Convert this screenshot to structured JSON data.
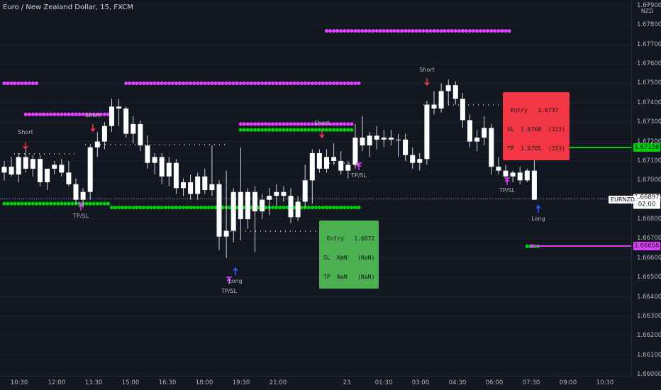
{
  "header": {
    "title": "Euro / New Zealand Dollar, 15, FXCM"
  },
  "price_axis": {
    "currency_line1": "—",
    "currency_line2": "NZD",
    "labels": [
      "1.67900",
      "1.67800",
      "1.67700",
      "1.67600",
      "1.67500",
      "1.67400",
      "1.67300",
      "1.67200",
      "1.67100",
      "1.67000",
      "1.66900",
      "1.66800",
      "1.66700",
      "1.66600",
      "1.66500",
      "1.66400",
      "1.66300",
      "1.66200",
      "1.66100",
      "1.66000"
    ],
    "tag_upper": "1.67156",
    "tag_lower": "1.66656",
    "current_price": "1.66897",
    "countdown": "02:00",
    "symbol": "EURNZD"
  },
  "time_axis": {
    "labels": [
      "10:30",
      "12:00",
      "13:30",
      "15:00",
      "16:30",
      "18:00",
      "19:30",
      "21:00",
      "23",
      "01:30",
      "03:00",
      "04:30",
      "06:00",
      "07:30",
      "09:00",
      "10:30"
    ]
  },
  "short_box": {
    "entry_label": "Entry",
    "entry_value": "1.6737",
    "sl_label": "SL",
    "sl_value": "1.6768",
    "sl_pips": "(313)",
    "tp_label": "TP",
    "tp_value": "1.6705",
    "tp_pips": "(313)"
  },
  "long_box": {
    "entry_label": "Entry",
    "entry_value": "1.6672",
    "sl_label": "SL",
    "sl_value": "NaN",
    "sl_pips": "(NaN)",
    "tp_label": "TP",
    "tp_value": "NaN",
    "tp_pips": "(NaN)"
  },
  "signal_labels": {
    "short": "Short",
    "long": "Long",
    "tpsl": "TP/SL"
  },
  "colors": {
    "background": "#131722",
    "up_candle": "#ffffff",
    "down_candle": "#ffffff",
    "green_dots": "#00d00a",
    "magenta_dots": "#e040fb",
    "short_arrow": "#f23645",
    "long_arrow": "#2962ff",
    "tpsl_marker": "#e040fb"
  },
  "chart_data": {
    "type": "candlestick",
    "symbol": "EURNZD",
    "timeframe": "15",
    "ylim": [
      1.66,
      1.6795
    ],
    "candles": [
      {
        "o": 1.6704,
        "h": 1.671,
        "l": 1.67,
        "c": 1.6707
      },
      {
        "o": 1.6707,
        "h": 1.6712,
        "l": 1.6702,
        "c": 1.6703
      },
      {
        "o": 1.6703,
        "h": 1.6714,
        "l": 1.6699,
        "c": 1.6712
      },
      {
        "o": 1.6712,
        "h": 1.6716,
        "l": 1.6704,
        "c": 1.6706
      },
      {
        "o": 1.6706,
        "h": 1.6713,
        "l": 1.6702,
        "c": 1.6711
      },
      {
        "o": 1.6711,
        "h": 1.6713,
        "l": 1.6697,
        "c": 1.6699
      },
      {
        "o": 1.6699,
        "h": 1.6706,
        "l": 1.6695,
        "c": 1.6706
      },
      {
        "o": 1.6706,
        "h": 1.671,
        "l": 1.6703,
        "c": 1.6708
      },
      {
        "o": 1.6708,
        "h": 1.6711,
        "l": 1.6702,
        "c": 1.6704
      },
      {
        "o": 1.6704,
        "h": 1.671,
        "l": 1.6697,
        "c": 1.6698
      },
      {
        "o": 1.6698,
        "h": 1.6701,
        "l": 1.6688,
        "c": 1.669
      },
      {
        "o": 1.669,
        "h": 1.6696,
        "l": 1.6686,
        "c": 1.6694
      },
      {
        "o": 1.6694,
        "h": 1.6718,
        "l": 1.669,
        "c": 1.6717
      },
      {
        "o": 1.6717,
        "h": 1.6725,
        "l": 1.6712,
        "c": 1.672
      },
      {
        "o": 1.672,
        "h": 1.673,
        "l": 1.6716,
        "c": 1.6728
      },
      {
        "o": 1.6728,
        "h": 1.6742,
        "l": 1.6725,
        "c": 1.6738
      },
      {
        "o": 1.6738,
        "h": 1.6742,
        "l": 1.6728,
        "c": 1.6737
      },
      {
        "o": 1.6737,
        "h": 1.6738,
        "l": 1.6722,
        "c": 1.6724
      },
      {
        "o": 1.6724,
        "h": 1.6733,
        "l": 1.6719,
        "c": 1.6729
      },
      {
        "o": 1.6729,
        "h": 1.6731,
        "l": 1.6715,
        "c": 1.6718
      },
      {
        "o": 1.6718,
        "h": 1.6723,
        "l": 1.6706,
        "c": 1.6709
      },
      {
        "o": 1.6709,
        "h": 1.6714,
        "l": 1.6703,
        "c": 1.6712
      },
      {
        "o": 1.6712,
        "h": 1.6714,
        "l": 1.6698,
        "c": 1.6702
      },
      {
        "o": 1.6702,
        "h": 1.6712,
        "l": 1.6697,
        "c": 1.6709
      },
      {
        "o": 1.6709,
        "h": 1.6711,
        "l": 1.6693,
        "c": 1.6696
      },
      {
        "o": 1.6696,
        "h": 1.6701,
        "l": 1.6692,
        "c": 1.6699
      },
      {
        "o": 1.6699,
        "h": 1.6703,
        "l": 1.669,
        "c": 1.6693
      },
      {
        "o": 1.6693,
        "h": 1.6704,
        "l": 1.669,
        "c": 1.6702
      },
      {
        "o": 1.6702,
        "h": 1.6706,
        "l": 1.6693,
        "c": 1.6695
      },
      {
        "o": 1.6695,
        "h": 1.6718,
        "l": 1.6692,
        "c": 1.6698
      },
      {
        "o": 1.6698,
        "h": 1.67,
        "l": 1.6664,
        "c": 1.6671
      },
      {
        "o": 1.6671,
        "h": 1.6705,
        "l": 1.666,
        "c": 1.6674
      },
      {
        "o": 1.6674,
        "h": 1.6696,
        "l": 1.6668,
        "c": 1.6694
      },
      {
        "o": 1.6694,
        "h": 1.6717,
        "l": 1.6669,
        "c": 1.668
      },
      {
        "o": 1.668,
        "h": 1.6696,
        "l": 1.6675,
        "c": 1.6694
      },
      {
        "o": 1.6694,
        "h": 1.6697,
        "l": 1.6663,
        "c": 1.6684
      },
      {
        "o": 1.6684,
        "h": 1.6693,
        "l": 1.668,
        "c": 1.669
      },
      {
        "o": 1.669,
        "h": 1.6696,
        "l": 1.6682,
        "c": 1.6692
      },
      {
        "o": 1.6692,
        "h": 1.6698,
        "l": 1.6687,
        "c": 1.6694
      },
      {
        "o": 1.6694,
        "h": 1.6697,
        "l": 1.6689,
        "c": 1.6692
      },
      {
        "o": 1.6692,
        "h": 1.6696,
        "l": 1.6678,
        "c": 1.6681
      },
      {
        "o": 1.6681,
        "h": 1.6692,
        "l": 1.6679,
        "c": 1.6689
      },
      {
        "o": 1.6689,
        "h": 1.6708,
        "l": 1.6686,
        "c": 1.67
      },
      {
        "o": 1.67,
        "h": 1.6716,
        "l": 1.6688,
        "c": 1.6714
      },
      {
        "o": 1.6714,
        "h": 1.6716,
        "l": 1.6704,
        "c": 1.6706
      },
      {
        "o": 1.6706,
        "h": 1.6716,
        "l": 1.6704,
        "c": 1.6712
      },
      {
        "o": 1.6712,
        "h": 1.6719,
        "l": 1.6708,
        "c": 1.671
      },
      {
        "o": 1.671,
        "h": 1.6715,
        "l": 1.6703,
        "c": 1.6705
      },
      {
        "o": 1.6705,
        "h": 1.671,
        "l": 1.6701,
        "c": 1.6708
      },
      {
        "o": 1.6708,
        "h": 1.6729,
        "l": 1.6706,
        "c": 1.6722
      },
      {
        "o": 1.6722,
        "h": 1.6733,
        "l": 1.6715,
        "c": 1.6718
      },
      {
        "o": 1.6718,
        "h": 1.6725,
        "l": 1.6712,
        "c": 1.6723
      },
      {
        "o": 1.6723,
        "h": 1.6728,
        "l": 1.6716,
        "c": 1.6721
      },
      {
        "o": 1.6721,
        "h": 1.6726,
        "l": 1.6717,
        "c": 1.6722
      },
      {
        "o": 1.6722,
        "h": 1.6726,
        "l": 1.6718,
        "c": 1.6721
      },
      {
        "o": 1.6721,
        "h": 1.6724,
        "l": 1.6712,
        "c": 1.6721
      },
      {
        "o": 1.6721,
        "h": 1.6724,
        "l": 1.671,
        "c": 1.6713
      },
      {
        "o": 1.6713,
        "h": 1.6717,
        "l": 1.6706,
        "c": 1.6709
      },
      {
        "o": 1.6709,
        "h": 1.6714,
        "l": 1.6705,
        "c": 1.6711
      },
      {
        "o": 1.6711,
        "h": 1.6741,
        "l": 1.6708,
        "c": 1.6739
      },
      {
        "o": 1.6739,
        "h": 1.6746,
        "l": 1.6734,
        "c": 1.6737
      },
      {
        "o": 1.6737,
        "h": 1.675,
        "l": 1.6735,
        "c": 1.6746
      },
      {
        "o": 1.6746,
        "h": 1.6752,
        "l": 1.6739,
        "c": 1.6749
      },
      {
        "o": 1.6749,
        "h": 1.6751,
        "l": 1.6739,
        "c": 1.6742
      },
      {
        "o": 1.6742,
        "h": 1.6745,
        "l": 1.6727,
        "c": 1.6731
      },
      {
        "o": 1.6731,
        "h": 1.6734,
        "l": 1.6717,
        "c": 1.672
      },
      {
        "o": 1.672,
        "h": 1.6726,
        "l": 1.6715,
        "c": 1.6722
      },
      {
        "o": 1.6722,
        "h": 1.6733,
        "l": 1.6718,
        "c": 1.6727
      },
      {
        "o": 1.6727,
        "h": 1.6729,
        "l": 1.6703,
        "c": 1.6707
      },
      {
        "o": 1.6707,
        "h": 1.6712,
        "l": 1.6703,
        "c": 1.6705
      },
      {
        "o": 1.6705,
        "h": 1.6708,
        "l": 1.6702,
        "c": 1.6702
      },
      {
        "o": 1.6702,
        "h": 1.6705,
        "l": 1.6699,
        "c": 1.6704
      },
      {
        "o": 1.6704,
        "h": 1.6707,
        "l": 1.6698,
        "c": 1.67
      },
      {
        "o": 1.67,
        "h": 1.6706,
        "l": 1.6699,
        "c": 1.6705
      },
      {
        "o": 1.6705,
        "h": 1.6715,
        "l": 1.669,
        "c": 1.669
      }
    ],
    "levels": [
      {
        "name": "resistance",
        "x": [
          0,
          4
        ],
        "y": 1.675
      },
      {
        "name": "resistance",
        "x": [
          3,
          14
        ],
        "y": 1.6734
      },
      {
        "name": "resistance",
        "x": [
          17,
          49
        ],
        "y": 1.675
      },
      {
        "name": "resistance",
        "x": [
          33,
          48
        ],
        "y": 1.6729
      },
      {
        "name": "resistance",
        "x": [
          45,
          70
        ],
        "y": 1.6777
      },
      {
        "name": "support",
        "x": [
          0,
          14
        ],
        "y": 1.6688
      },
      {
        "name": "support",
        "x": [
          15,
          49
        ],
        "y": 1.6686
      },
      {
        "name": "support",
        "x": [
          33,
          48
        ],
        "y": 1.6726
      },
      {
        "name": "support",
        "x": [
          73,
          74
        ],
        "y": 1.6716
      },
      {
        "name": "support",
        "x": [
          73,
          74
        ],
        "y": 1.6666
      }
    ]
  }
}
